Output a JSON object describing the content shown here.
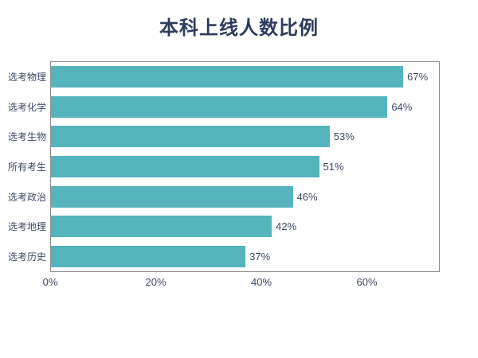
{
  "title": "本科上线人数比例",
  "colors": {
    "bg": "#ffffff",
    "bar": "#55b4bc",
    "title": "#2e3c5e",
    "text": "#3d4a63",
    "border": "#8c8c8c"
  },
  "chart_data": {
    "type": "bar",
    "orientation": "horizontal",
    "title": "本科上线人数比例",
    "categories": [
      "选考物理",
      "选考化学",
      "选考生物",
      "所有考生",
      "选考政治",
      "选考地理",
      "选考历史"
    ],
    "values": [
      67,
      64,
      53,
      51,
      46,
      42,
      37
    ],
    "value_labels": [
      "67%",
      "64%",
      "53%",
      "51%",
      "46%",
      "42%",
      "37%"
    ],
    "x_ticks": [
      0,
      20,
      40,
      60
    ],
    "x_tick_labels": [
      "0%",
      "20%",
      "40%",
      "60%"
    ],
    "xlim": [
      0,
      73.8
    ],
    "xlabel": "",
    "ylabel": "",
    "grid": false,
    "legend_position": "none"
  }
}
